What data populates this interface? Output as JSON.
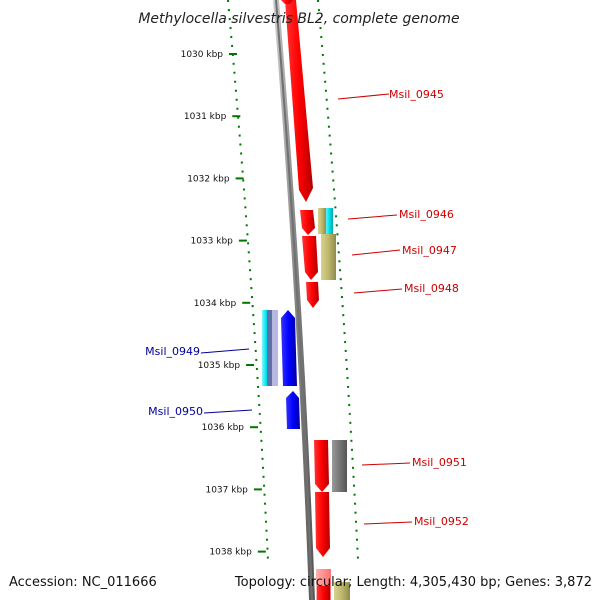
{
  "title": "Methylocella silvestris BL2, complete genome",
  "footer": {
    "accession": "Accession: NC_011666",
    "topology": "Topology: circular; Length: 4,305,430 bp; Genes: 3,872"
  },
  "ticks": [
    "1030 kbp",
    "1031 kbp",
    "1032 kbp",
    "1033 kbp",
    "1034 kbp",
    "1035 kbp",
    "1036 kbp",
    "1037 kbp",
    "1038 kbp"
  ],
  "genes_forward": [
    "Msil_0945",
    "Msil_0946",
    "Msil_0947",
    "Msil_0948",
    "Msil_0951",
    "Msil_0952"
  ],
  "genes_reverse": [
    "Msil_0949",
    "Msil_0950"
  ],
  "colors": {
    "forward_gene": "#ff0000",
    "reverse_gene": "#0000ff",
    "forward_label": "#cc0000",
    "reverse_label": "#000099",
    "tick": "#007700",
    "backbone": "#808080",
    "cyan_feature": "#00e5ee",
    "khaki_feature": "#bdb76b",
    "gray_feature": "#777777"
  }
}
